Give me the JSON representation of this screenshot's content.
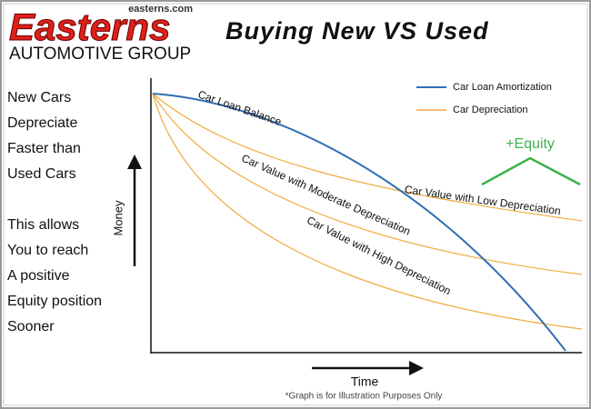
{
  "logo": {
    "website": "easterns.com",
    "brand": "Easterns",
    "tagline": "AUTOMOTIVE GROUP"
  },
  "title": "Buying New VS Used",
  "side_text": {
    "first": [
      "New Cars",
      "Depreciate",
      "Faster than",
      "Used Cars"
    ],
    "second": [
      "This allows",
      "You to reach",
      "A positive",
      "Equity position",
      "Sooner"
    ]
  },
  "graph": {
    "y_axis_label": "Money",
    "x_axis_label": "Time",
    "legend": [
      "Car Loan Amortization",
      "Car Depreciation"
    ],
    "curve_labels": [
      "Car Loan Balance",
      "Car Value with Low Depreciation",
      "Car Value with Moderate Depreciation",
      "Car Value with High Depreciation"
    ],
    "equity_label": "+Equity",
    "footnote": "*Graph is for Illustration Purposes Only"
  }
}
